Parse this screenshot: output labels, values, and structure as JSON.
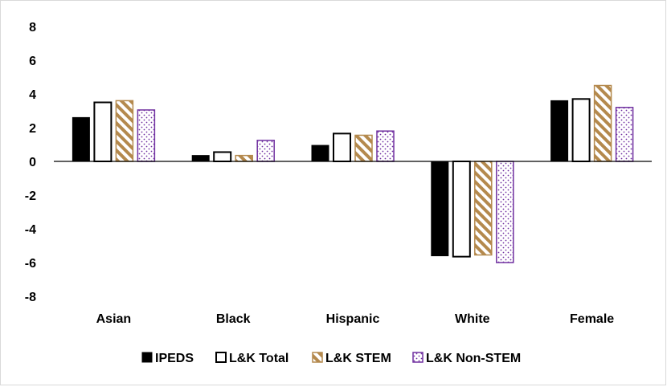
{
  "chart_data": {
    "type": "bar",
    "categories": [
      "Asian",
      "Black",
      "Hispanic",
      "White",
      "Female"
    ],
    "series": [
      {
        "name": "IPEDS",
        "values": [
          2.6,
          0.35,
          0.95,
          -5.6,
          3.6
        ],
        "color": "#000000",
        "pattern": "solid"
      },
      {
        "name": "L&K Total",
        "values": [
          3.5,
          0.55,
          1.65,
          -5.65,
          3.7
        ],
        "color": "#000000",
        "pattern": "outline"
      },
      {
        "name": "L&K STEM",
        "values": [
          3.6,
          0.35,
          1.55,
          -5.55,
          4.5
        ],
        "color": "#b4894d",
        "pattern": "diagonal-stripes"
      },
      {
        "name": "L&K Non-STEM",
        "values": [
          3.05,
          1.25,
          1.8,
          -6.0,
          3.2
        ],
        "color": "#7030a0",
        "pattern": "dots"
      }
    ],
    "y_ticks": [
      "8",
      "6",
      "4",
      "2",
      "0",
      "-2",
      "-4",
      "-6",
      "-8"
    ],
    "ylim": [
      -8,
      8
    ],
    "gridlines": false,
    "legend_position": "bottom",
    "title": "",
    "xlabel": "",
    "ylabel": ""
  }
}
